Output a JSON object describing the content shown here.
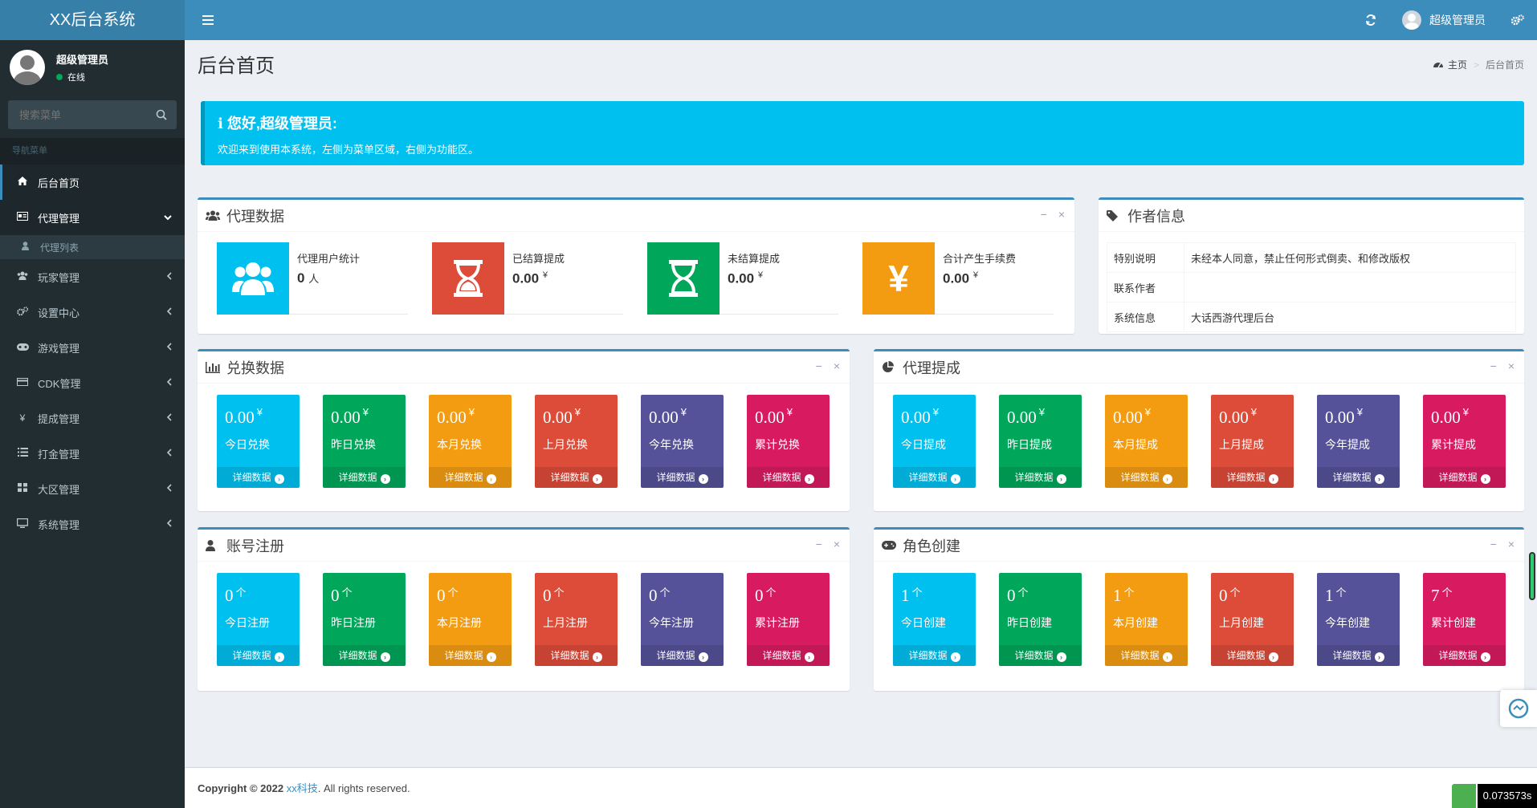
{
  "app": {
    "title": "XX后台系统"
  },
  "topbar": {
    "user": "超级管理员"
  },
  "sidebar": {
    "user_name": "超级管理员",
    "user_status": "在线",
    "search_placeholder": "搜索菜单",
    "nav_header": "导航菜单",
    "items": [
      {
        "label": "后台首页",
        "icon": "home-icon"
      },
      {
        "label": "代理管理",
        "icon": "id-card-icon"
      },
      {
        "label": "代理列表",
        "icon": "user-icon"
      },
      {
        "label": "玩家管理",
        "icon": "users-icon"
      },
      {
        "label": "设置中心",
        "icon": "gears-icon"
      },
      {
        "label": "游戏管理",
        "icon": "gamepad-icon"
      },
      {
        "label": "CDK管理",
        "icon": "credit-card-icon"
      },
      {
        "label": "提成管理",
        "icon": "yen-icon"
      },
      {
        "label": "打金管理",
        "icon": "list-icon"
      },
      {
        "label": "大区管理",
        "icon": "grid-icon"
      },
      {
        "label": "系统管理",
        "icon": "desktop-icon"
      }
    ]
  },
  "page": {
    "title": "后台首页",
    "breadcrumb": {
      "home": "主页",
      "current": "后台首页"
    }
  },
  "callout": {
    "title": "您好,超级管理员:",
    "text": "欢迎来到使用本系统，左侧为菜单区域，右侧为功能区。"
  },
  "agent_data": {
    "title": "代理数据",
    "items": [
      {
        "label": "代理用户统计",
        "value": "0",
        "unit": "人",
        "color": "#00c0ef",
        "icon": "users-icon"
      },
      {
        "label": "已结算提成",
        "value": "0.00",
        "unit": "¥",
        "color": "#dd4b39",
        "icon": "hourglass-icon"
      },
      {
        "label": "未结算提成",
        "value": "0.00",
        "unit": "¥",
        "color": "#00a65a",
        "icon": "hourglass-icon"
      },
      {
        "label": "合计产生手续费",
        "value": "0.00",
        "unit": "¥",
        "color": "#f39c12",
        "icon": "yen-icon"
      }
    ]
  },
  "author_info": {
    "title": "作者信息",
    "rows": [
      {
        "key": "特别说明",
        "value": "未经本人同意，禁止任何形式倒卖、和修改版权"
      },
      {
        "key": "联系作者",
        "value": ""
      },
      {
        "key": "系统信息",
        "value": "大话西游代理后台"
      }
    ]
  },
  "exchange_data": {
    "title": "兑换数据",
    "cards": [
      {
        "value": "0.00",
        "unit": "¥",
        "label": "今日兑换"
      },
      {
        "value": "0.00",
        "unit": "¥",
        "label": "昨日兑换"
      },
      {
        "value": "0.00",
        "unit": "¥",
        "label": "本月兑换"
      },
      {
        "value": "0.00",
        "unit": "¥",
        "label": "上月兑换"
      },
      {
        "value": "0.00",
        "unit": "¥",
        "label": "今年兑换"
      },
      {
        "value": "0.00",
        "unit": "¥",
        "label": "累计兑换"
      }
    ]
  },
  "agent_commission": {
    "title": "代理提成",
    "cards": [
      {
        "value": "0.00",
        "unit": "¥",
        "label": "今日提成"
      },
      {
        "value": "0.00",
        "unit": "¥",
        "label": "昨日提成"
      },
      {
        "value": "0.00",
        "unit": "¥",
        "label": "本月提成"
      },
      {
        "value": "0.00",
        "unit": "¥",
        "label": "上月提成"
      },
      {
        "value": "0.00",
        "unit": "¥",
        "label": "今年提成"
      },
      {
        "value": "0.00",
        "unit": "¥",
        "label": "累计提成"
      }
    ]
  },
  "account_register": {
    "title": "账号注册",
    "cards": [
      {
        "value": "0",
        "unit": "个",
        "label": "今日注册"
      },
      {
        "value": "0",
        "unit": "个",
        "label": "昨日注册"
      },
      {
        "value": "0",
        "unit": "个",
        "label": "本月注册"
      },
      {
        "value": "0",
        "unit": "个",
        "label": "上月注册"
      },
      {
        "value": "0",
        "unit": "个",
        "label": "今年注册"
      },
      {
        "value": "0",
        "unit": "个",
        "label": "累计注册"
      }
    ]
  },
  "role_create": {
    "title": "角色创建",
    "cards": [
      {
        "value": "1",
        "unit": "个",
        "label": "今日创建"
      },
      {
        "value": "0",
        "unit": "个",
        "label": "昨日创建"
      },
      {
        "value": "1",
        "unit": "个",
        "label": "本月创建"
      },
      {
        "value": "0",
        "unit": "个",
        "label": "上月创建"
      },
      {
        "value": "1",
        "unit": "个",
        "label": "今年创建"
      },
      {
        "value": "7",
        "unit": "个",
        "label": "累计创建"
      }
    ]
  },
  "card_footer": "详细数据",
  "card_colors": [
    "#00c0ef",
    "#00a65a",
    "#f39c12",
    "#dd4b39",
    "#555299",
    "#d81b60"
  ],
  "footer": {
    "copyright": "Copyright © 2022 ",
    "company": "xx科技",
    "rights": ". All rights reserved."
  },
  "timer": "0.073573s"
}
